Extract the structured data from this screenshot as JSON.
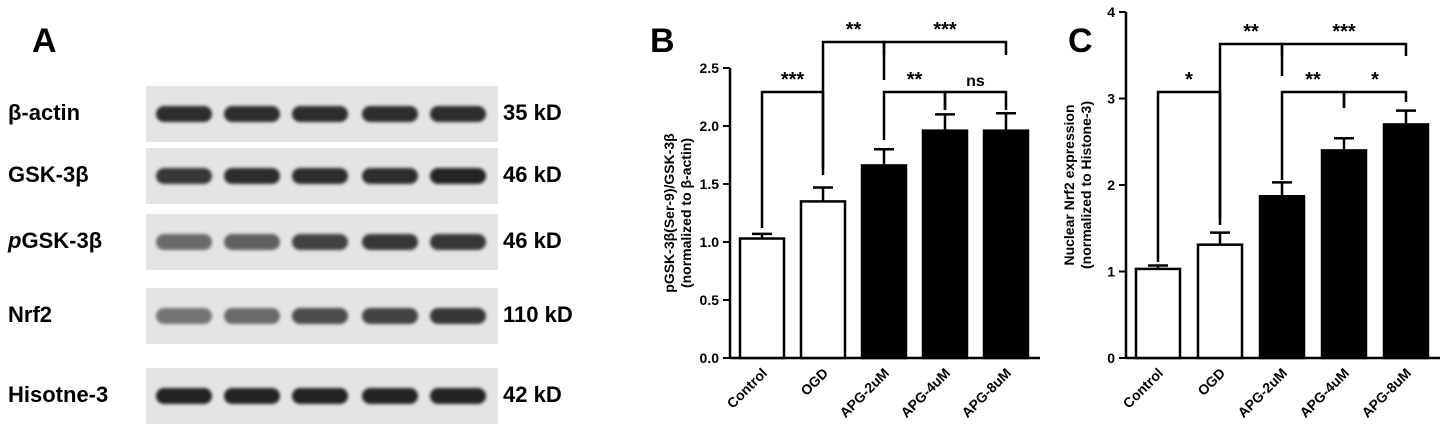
{
  "panels": {
    "a": "A",
    "b": "B",
    "c": "C"
  },
  "blot": {
    "rows": [
      {
        "protein": "β-actin",
        "prefix": "",
        "size": "35 kD",
        "intensity": [
          0.9,
          0.9,
          0.9,
          0.9,
          0.9
        ]
      },
      {
        "protein": "GSK-3β",
        "prefix": "",
        "size": "46 kD",
        "intensity": [
          0.85,
          0.9,
          0.9,
          0.9,
          0.95
        ]
      },
      {
        "protein": "GSK-3β",
        "prefix": "p",
        "size": "46 kD",
        "intensity": [
          0.6,
          0.65,
          0.8,
          0.85,
          0.85
        ]
      },
      {
        "protein": "Nrf2",
        "prefix": "",
        "size": "110 kD",
        "intensity": [
          0.55,
          0.6,
          0.75,
          0.8,
          0.85
        ]
      },
      {
        "protein": "Hisotne-3",
        "prefix": "",
        "size": "42 kD",
        "intensity": [
          0.95,
          0.95,
          0.95,
          0.95,
          0.95
        ]
      }
    ]
  },
  "chart_data": [
    {
      "type": "bar",
      "panel": "B",
      "categories": [
        "Control",
        "OGD",
        "APG-2uM",
        "APG-4uM",
        "APG-8uM"
      ],
      "values": [
        1.03,
        1.35,
        1.66,
        1.96,
        1.96
      ],
      "errors": [
        0.04,
        0.12,
        0.14,
        0.14,
        0.15
      ],
      "fills": [
        "white",
        "white",
        "black",
        "black",
        "black"
      ],
      "ylabel": "pGSK-3β(Ser-9)/GSK-3β",
      "ylabel2": "(normalized to β-actin)",
      "ylim": [
        0,
        2.5
      ],
      "yticks": [
        "0.0",
        "0.5",
        "1.0",
        "1.5",
        "2.0",
        "2.5"
      ],
      "significance": [
        {
          "from": 0,
          "to": 1,
          "label": "***"
        },
        {
          "from": 1,
          "to": 2,
          "label": "**"
        },
        {
          "from": 2,
          "to": 4,
          "label": "***"
        },
        {
          "from": 2,
          "to": 3,
          "label": "**"
        },
        {
          "from": 3,
          "to": 4,
          "label": "ns"
        }
      ]
    },
    {
      "type": "bar",
      "panel": "C",
      "categories": [
        "Control",
        "OGD",
        "APG-2uM",
        "APG-4uM",
        "APG-8uM"
      ],
      "values": [
        1.03,
        1.31,
        1.87,
        2.4,
        2.7
      ],
      "errors": [
        0.04,
        0.14,
        0.16,
        0.14,
        0.16
      ],
      "fills": [
        "white",
        "white",
        "black",
        "black",
        "black"
      ],
      "ylabel": "Nuclear Nrf2 expression",
      "ylabel2": "(normalized to Histone-3)",
      "ylim": [
        0,
        4
      ],
      "yticks": [
        "0",
        "1",
        "2",
        "3",
        "4"
      ],
      "significance": [
        {
          "from": 0,
          "to": 1,
          "label": "*"
        },
        {
          "from": 1,
          "to": 2,
          "label": "**"
        },
        {
          "from": 2,
          "to": 4,
          "label": "***"
        },
        {
          "from": 2,
          "to": 3,
          "label": "**"
        },
        {
          "from": 3,
          "to": 4,
          "label": "*"
        }
      ]
    }
  ]
}
